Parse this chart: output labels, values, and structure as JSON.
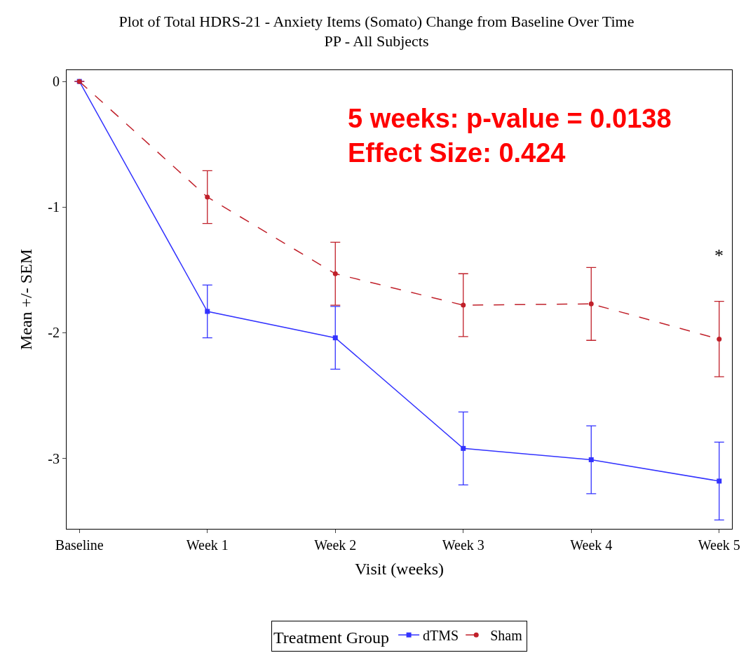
{
  "chart_data": {
    "type": "line",
    "title": "Plot of Total HDRS-21 - Anxiety Items (Somato) Change from Baseline Over Time",
    "subtitle": "PP - All Subjects",
    "xlabel": "Visit (weeks)",
    "ylabel": "Mean +/- SEM",
    "legend_title": "Treatment Group",
    "categories": [
      "Baseline",
      "Week 1",
      "Week 2",
      "Week 3",
      "Week 4",
      "Week 5"
    ],
    "series": [
      {
        "name": "dTMS",
        "color": "#3333ff",
        "marker": "square",
        "line_style": "solid",
        "values": [
          0,
          -1.83,
          -2.04,
          -2.92,
          -3.01,
          -3.18
        ],
        "errors": [
          null,
          0.21,
          0.25,
          0.29,
          0.27,
          0.31
        ]
      },
      {
        "name": "Sham",
        "color": "#c0202a",
        "marker": "circle",
        "line_style": "dashed",
        "values": [
          0,
          -0.92,
          -1.53,
          -1.78,
          -1.77,
          -2.05
        ],
        "errors": [
          null,
          0.21,
          0.25,
          0.25,
          0.29,
          0.3
        ]
      }
    ],
    "annotations": [
      "5 weeks: p-value = 0.0138",
      "Effect Size: 0.424",
      "*"
    ],
    "ylim": [
      -3.56,
      0.09
    ],
    "yticks": [
      0,
      -1,
      -2,
      -3
    ],
    "legend": "bottom"
  }
}
